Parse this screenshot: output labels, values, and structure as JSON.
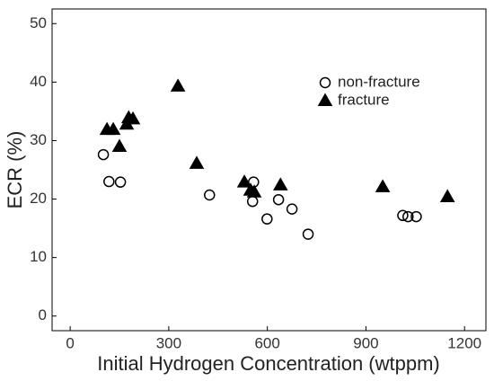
{
  "chart_data": {
    "type": "scatter",
    "xlabel": "Initial Hydrogen Concentration (wtppm)",
    "ylabel": "ECR (%)",
    "xlim": [
      -55,
      1265
    ],
    "ylim": [
      -2.5,
      52.5
    ],
    "xticks": [
      0,
      300,
      600,
      900,
      1200
    ],
    "yticks": [
      0,
      10,
      20,
      30,
      40,
      50
    ],
    "legend": "upper right",
    "series": [
      {
        "name": "non-fracture",
        "color": "#000000",
        "marker": "circle",
        "filled": false,
        "x": [
          101,
          118,
          153,
          424,
          558,
          555,
          599,
          634,
          675,
          724,
          1012,
          1028,
          1053
        ],
        "values": [
          27.6,
          23.0,
          22.9,
          20.7,
          22.9,
          19.6,
          16.6,
          19.9,
          18.3,
          14.0,
          17.2,
          17.0,
          17.0
        ]
      },
      {
        "name": "fracture",
        "color": "#000000",
        "marker": "triangle",
        "filled": true,
        "x": [
          112,
          131,
          150,
          172,
          178,
          191,
          328,
          385,
          530,
          549,
          560,
          640,
          951,
          1148
        ],
        "values": [
          31.9,
          31.9,
          29.0,
          32.8,
          33.9,
          33.7,
          39.3,
          26.1,
          22.9,
          21.5,
          21.2,
          22.4,
          22.1,
          20.4
        ]
      }
    ]
  }
}
